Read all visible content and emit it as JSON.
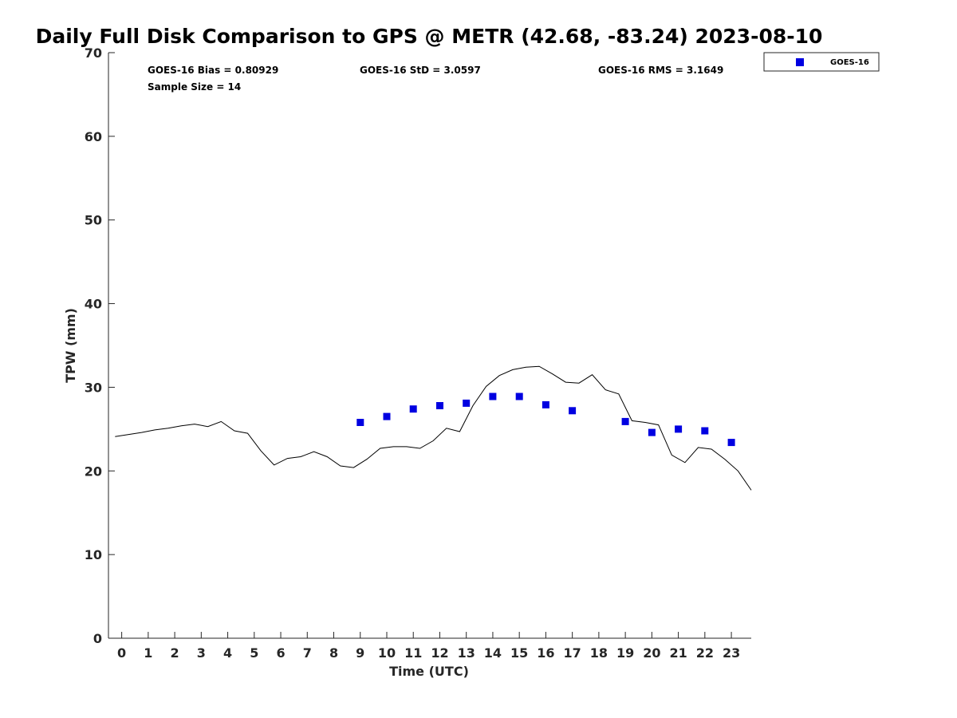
{
  "chart_data": {
    "type": "scatter",
    "title": "Daily Full Disk Comparison to GPS @ METR (42.68, -83.24) 2023-08-10",
    "xlabel": "Time (UTC)",
    "ylabel": "TPW (mm)",
    "xlim": [
      -0.5,
      23.75
    ],
    "ylim": [
      0,
      70
    ],
    "x_ticks": [
      0,
      1,
      2,
      3,
      4,
      5,
      6,
      7,
      8,
      9,
      10,
      11,
      12,
      13,
      14,
      15,
      16,
      17,
      18,
      19,
      20,
      21,
      22,
      23
    ],
    "x_tick_labels": [
      "0",
      "1",
      "2",
      "3",
      "4",
      "5",
      "6",
      "7",
      "8",
      "9",
      "10",
      "11",
      "12",
      "13",
      "14",
      "15",
      "16",
      "17",
      "18",
      "19",
      "20",
      "21",
      "22",
      "23"
    ],
    "y_ticks": [
      0,
      10,
      20,
      30,
      40,
      50,
      60,
      70
    ],
    "y_tick_labels": [
      "0",
      "10",
      "20",
      "30",
      "40",
      "50",
      "60",
      "70"
    ],
    "grid": false,
    "legend_position": "top-right outside",
    "stats": {
      "bias": "GOES-16 Bias = 0.80929",
      "std": "GOES-16 StD = 3.0597",
      "rms": "GOES-16 RMS = 3.1649",
      "sample": "Sample Size = 14"
    },
    "series": [
      {
        "name": "GPS",
        "kind": "line",
        "color": "#000000",
        "x": [
          -0.25,
          0.75,
          1.25,
          1.75,
          2.25,
          2.75,
          3.25,
          3.75,
          4.25,
          4.75,
          5.25,
          5.75,
          6.25,
          6.75,
          7.25,
          7.75,
          8.25,
          8.75,
          9.25,
          9.75,
          10.25,
          10.75,
          11.25,
          11.75,
          12.25,
          12.75,
          13.25,
          13.75,
          14.25,
          14.75,
          15.25,
          15.75,
          16.25,
          16.75,
          17.25,
          17.75,
          18.25,
          18.75,
          19.25,
          19.75,
          20.25,
          20.75,
          21.25,
          21.75,
          22.25,
          22.75,
          23.25,
          23.75
        ],
        "y": [
          24.1,
          24.6,
          24.9,
          25.1,
          25.4,
          25.6,
          25.3,
          25.9,
          24.8,
          24.5,
          22.4,
          20.7,
          21.5,
          21.7,
          22.3,
          21.7,
          20.6,
          20.4,
          21.4,
          22.7,
          22.9,
          22.9,
          22.7,
          23.6,
          25.1,
          24.7,
          27.8,
          30.1,
          31.4,
          32.1,
          32.4,
          32.5,
          31.6,
          30.6,
          30.5,
          31.5,
          29.7,
          29.2,
          26.0,
          25.8,
          25.5,
          21.9,
          21.0,
          22.8,
          22.6,
          21.4,
          20.0,
          17.7
        ]
      },
      {
        "name": "GOES-16",
        "kind": "scatter",
        "color": "#0000e1",
        "marker": "square",
        "x": [
          9,
          10,
          11,
          12,
          13,
          14,
          15,
          16,
          17,
          19,
          20,
          21,
          22,
          23
        ],
        "y": [
          25.8,
          26.5,
          27.4,
          27.8,
          28.1,
          28.9,
          28.9,
          27.9,
          27.2,
          25.9,
          24.6,
          25.0,
          24.8,
          23.4
        ]
      }
    ]
  }
}
